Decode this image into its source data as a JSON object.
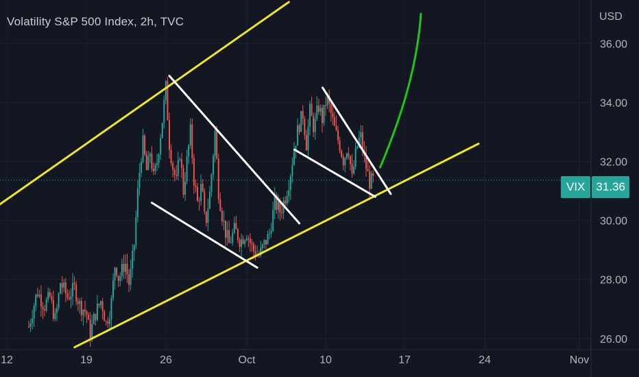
{
  "header": {
    "title": "Volatility S&P 500 Index, 2h, TVC",
    "currency": "USD"
  },
  "price_label": {
    "symbol": "VIX",
    "value": "31.36"
  },
  "colors": {
    "background": "#131722",
    "up": "#26a69a",
    "down": "#ef5350",
    "channel": "#f0e62a",
    "wedge": "#ffffff",
    "projection": "#22c51e",
    "axis_text": "#b2b5be"
  },
  "chart_data": {
    "type": "candlestick",
    "y_ticks": [
      "36.00",
      "34.00",
      "32.00",
      "30.00",
      "28.00",
      "26.00"
    ],
    "x_ticks": [
      "12",
      "19",
      "26",
      "Oct",
      "10",
      "17",
      "24",
      "Nov"
    ],
    "ylim": [
      25.6,
      37.4
    ],
    "last_price": 31.36,
    "price_path": [
      [
        0.0,
        26.4
      ],
      [
        1.2,
        27.6
      ],
      [
        2.2,
        27.1
      ],
      [
        3.0,
        27.4
      ],
      [
        3.8,
        26.6
      ],
      [
        4.5,
        27.9
      ],
      [
        5.5,
        27.4
      ],
      [
        6.5,
        27.7
      ],
      [
        7.3,
        27.1
      ],
      [
        8.2,
        26.9
      ],
      [
        8.7,
        26.1
      ],
      [
        9.4,
        26.8
      ],
      [
        10.3,
        27.3
      ],
      [
        11.0,
        26.5
      ],
      [
        11.7,
        27.1
      ],
      [
        12.3,
        28.6
      ],
      [
        12.8,
        28.0
      ],
      [
        13.7,
        28.6
      ],
      [
        14.3,
        27.8
      ],
      [
        15.0,
        29.2
      ],
      [
        15.6,
        31.3
      ],
      [
        16.2,
        32.7
      ],
      [
        16.8,
        31.6
      ],
      [
        17.3,
        32.4
      ],
      [
        17.7,
        31.4
      ],
      [
        18.2,
        31.9
      ],
      [
        19.0,
        33.4
      ],
      [
        19.5,
        34.5
      ],
      [
        20.0,
        32.6
      ],
      [
        20.5,
        31.8
      ],
      [
        21.0,
        31.3
      ],
      [
        21.5,
        32.3
      ],
      [
        22.0,
        31.0
      ],
      [
        22.5,
        32.0
      ],
      [
        23.0,
        33.0
      ],
      [
        23.5,
        31.4
      ],
      [
        24.0,
        30.6
      ],
      [
        24.6,
        31.2
      ],
      [
        25.1,
        29.8
      ],
      [
        25.8,
        31.0
      ],
      [
        26.5,
        33.0
      ],
      [
        27.0,
        31.0
      ],
      [
        27.5,
        30.2
      ],
      [
        28.0,
        29.6
      ],
      [
        28.5,
        29.2
      ],
      [
        29.3,
        29.7
      ],
      [
        30.1,
        29.3
      ],
      [
        31.0,
        29.6
      ],
      [
        31.9,
        29.0
      ],
      [
        32.8,
        28.8
      ],
      [
        33.5,
        29.2
      ],
      [
        34.2,
        29.5
      ],
      [
        35.0,
        30.6
      ],
      [
        35.8,
        30.3
      ],
      [
        36.5,
        30.8
      ],
      [
        37.1,
        31.4
      ],
      [
        37.8,
        32.5
      ],
      [
        38.4,
        33.2
      ],
      [
        39.0,
        33.6
      ],
      [
        39.5,
        32.6
      ],
      [
        40.0,
        33.7
      ],
      [
        40.6,
        33.1
      ],
      [
        41.2,
        33.9
      ],
      [
        41.8,
        33.4
      ],
      [
        42.4,
        34.2
      ],
      [
        43.0,
        33.6
      ],
      [
        43.6,
        33.0
      ],
      [
        44.2,
        32.6
      ],
      [
        44.8,
        32.0
      ],
      [
        45.4,
        32.6
      ],
      [
        46.0,
        31.4
      ],
      [
        46.6,
        32.4
      ],
      [
        47.2,
        32.9
      ],
      [
        47.8,
        32.0
      ],
      [
        48.5,
        31.3
      ],
      [
        49.0,
        31.36
      ]
    ],
    "annotations": [
      {
        "kind": "trendline",
        "color": "channel",
        "from": [
          -5.0,
          30.4
        ],
        "to": [
          37.0,
          37.4
        ]
      },
      {
        "kind": "trendline",
        "color": "channel",
        "from": [
          6.5,
          25.7
        ],
        "to": [
          64.0,
          32.6
        ]
      },
      {
        "kind": "trendline",
        "color": "wedge",
        "from": [
          20.0,
          34.9
        ],
        "to": [
          38.5,
          29.9
        ]
      },
      {
        "kind": "trendline",
        "color": "wedge",
        "from": [
          17.5,
          30.6
        ],
        "to": [
          32.5,
          28.4
        ]
      },
      {
        "kind": "trendline",
        "color": "wedge",
        "from": [
          41.8,
          34.5
        ],
        "to": [
          51.5,
          30.9
        ]
      },
      {
        "kind": "trendline",
        "color": "wedge",
        "from": [
          37.8,
          32.4
        ],
        "to": [
          49.3,
          30.8
        ]
      },
      {
        "kind": "arc",
        "color": "projection",
        "points": [
          [
            50.0,
            31.8
          ],
          [
            53.2,
            33.6
          ],
          [
            55.3,
            35.3
          ],
          [
            55.8,
            37.0
          ]
        ]
      }
    ]
  }
}
